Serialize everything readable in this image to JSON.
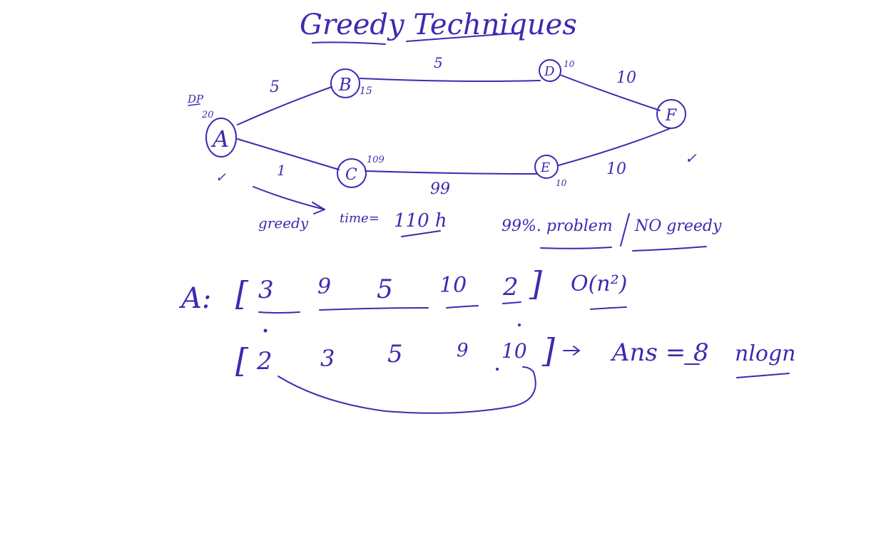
{
  "ink_color": "#3b2bb0",
  "title": "Greedy Techniques",
  "graph": {
    "nodes": {
      "A": {
        "label": "A",
        "annotation": "20"
      },
      "B": {
        "label": "B",
        "annotation": "15"
      },
      "C": {
        "label": "C",
        "annotation": "109"
      },
      "D": {
        "label": "D",
        "annotation": "10"
      },
      "E": {
        "label": "E",
        "annotation": "10"
      },
      "F": {
        "label": "F",
        "annotation": ""
      }
    },
    "edges": {
      "AB": "5",
      "AC": "1",
      "BD": "5",
      "CE": "99",
      "DF": "10",
      "EF": "10"
    },
    "dp_label": "DP",
    "check_mark": "✓",
    "greedy_label": "greedy",
    "time_label": "time=",
    "time_value": "110 h",
    "problem_note": "99%. problem",
    "no_greedy_note": "NO greedy"
  },
  "array_section": {
    "label": "A:",
    "original": [
      "3",
      "9",
      "5",
      "10",
      "2"
    ],
    "original_complexity": "O(n²)",
    "sorted": [
      "2",
      "3",
      "5",
      "9",
      "10"
    ],
    "answer_label": "Ans = 8",
    "sorted_complexity": "nlogn"
  }
}
